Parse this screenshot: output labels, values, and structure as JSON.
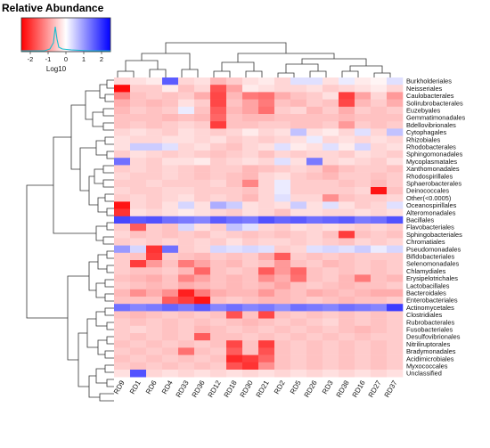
{
  "legend": {
    "title": "Relative Abundance",
    "xlabel": "Log10",
    "ticks": [
      "-2",
      "-1",
      "0",
      "1",
      "2"
    ],
    "colors": {
      "low": "#ff0000",
      "mid": "#ffffff",
      "high": "#0000ff",
      "density": "#17becf"
    }
  },
  "chart_data": {
    "type": "heatmap",
    "columns": [
      "RD9",
      "RD1",
      "RD6",
      "RD4",
      "RD33",
      "RD36",
      "RD12",
      "RD18",
      "RD30",
      "RD21",
      "RD2",
      "RD5",
      "RD26",
      "RD3",
      "RD38",
      "RD16",
      "RD27",
      "RD37"
    ],
    "rows": [
      "Burkholderiales",
      "Neisseriales",
      "Caulobacterales",
      "Solirubrobacterales",
      "Euzebyales",
      "Gemmatimonadales",
      "Bdellovibrionales",
      "Cytophagales",
      "Rhizobiales",
      "Rhodobacterales",
      "Sphingomonadales",
      "Mycoplasmatales",
      "Xanthomonadales",
      "Rhodospirillales",
      "Sphaerobacterales",
      "Deinococcales",
      "Other(<0.0005)",
      "Oceanospirillales",
      "Alteromonadales",
      "Bacillales",
      "Flavobacteriales",
      "Sphingobacteriales",
      "Chromatiales",
      "Pseudomonadales",
      "Bifidobacteriales",
      "Selenomonadales",
      "Chlamydiales",
      "Erysipelotrichales",
      "Lactobacillales",
      "Bacteroidales",
      "Enterobacteriales",
      "Actinomycetales",
      "Clostridiales",
      "Rubrobacterales",
      "Fusobacteriales",
      "Desulfovibrionales",
      "Nitriliruptorales",
      "Bradymonadales",
      "Acidimicrobiales",
      "Myxococcales",
      "Unclassified"
    ],
    "value_range": [
      -2.5,
      2.5
    ],
    "values": [
      [
        -0.4,
        -0.3,
        -0.2,
        1.6,
        -0.4,
        -0.3,
        -0.7,
        -0.5,
        -0.3,
        -0.2,
        -0.4,
        0.3,
        0.3,
        -0.3,
        0.2,
        -0.2,
        -0.1,
        0.3
      ],
      [
        -2.4,
        -0.5,
        -0.5,
        -0.2,
        -0.6,
        -0.4,
        -1.7,
        -0.9,
        -0.2,
        -0.3,
        -0.4,
        -0.4,
        -0.3,
        -0.5,
        -0.4,
        -0.3,
        -0.2,
        -0.4
      ],
      [
        -1.2,
        -0.6,
        -0.5,
        -0.6,
        -0.5,
        -0.8,
        -1.8,
        -0.7,
        -1.3,
        -1.4,
        -0.8,
        -0.6,
        -0.5,
        -0.3,
        -1.9,
        -0.9,
        -0.4,
        -1.0
      ],
      [
        -0.8,
        -0.6,
        -0.7,
        -0.6,
        -0.3,
        -0.5,
        -1.8,
        -0.6,
        -0.9,
        -1.3,
        -0.6,
        -0.7,
        -0.5,
        -0.6,
        -1.8,
        -0.7,
        -0.5,
        -0.8
      ],
      [
        -0.7,
        -0.5,
        -0.6,
        -0.5,
        0.2,
        -0.6,
        -1.6,
        -0.7,
        -0.9,
        -1.4,
        -0.5,
        -0.4,
        -0.7,
        -0.5,
        -0.8,
        -0.5,
        -0.6,
        -0.5
      ],
      [
        -0.6,
        -0.6,
        -0.6,
        -0.7,
        -0.6,
        -0.7,
        -1.5,
        -0.6,
        -0.7,
        -0.7,
        -0.6,
        -0.6,
        -0.6,
        -0.6,
        -0.7,
        -0.6,
        -0.6,
        -0.6
      ],
      [
        -0.6,
        -0.5,
        -0.6,
        -0.5,
        -0.4,
        -0.5,
        -1.9,
        -0.6,
        -0.6,
        -0.5,
        -0.5,
        -0.6,
        -0.6,
        -0.5,
        -1.0,
        -0.5,
        -0.6,
        -0.5
      ],
      [
        -0.4,
        -0.3,
        -0.4,
        -0.5,
        -0.3,
        -0.4,
        -0.5,
        -0.4,
        -0.2,
        -0.4,
        -0.3,
        0.6,
        -0.3,
        -0.2,
        -0.4,
        0.3,
        -0.4,
        0.6
      ],
      [
        -0.3,
        -0.4,
        -0.4,
        -0.3,
        -0.3,
        -0.4,
        -0.3,
        -0.5,
        -0.4,
        -0.5,
        -0.4,
        -0.3,
        0.2,
        -0.4,
        -0.3,
        -0.4,
        -0.3,
        -0.4
      ],
      [
        -0.3,
        0.5,
        0.5,
        0.3,
        -0.4,
        -0.3,
        -0.5,
        -0.6,
        -0.4,
        -0.3,
        0.3,
        -0.2,
        -0.3,
        0.3,
        -0.2,
        0.4,
        -0.4,
        -0.3
      ],
      [
        -0.5,
        -0.3,
        -0.4,
        -0.5,
        -0.4,
        -0.5,
        -0.6,
        -0.5,
        -0.4,
        -0.6,
        -0.4,
        -0.5,
        -0.4,
        -0.4,
        -0.5,
        -0.3,
        -0.4,
        -0.5
      ],
      [
        1.4,
        -0.4,
        -0.5,
        -0.3,
        -0.3,
        -0.2,
        -0.5,
        -0.4,
        -0.3,
        -0.4,
        0.3,
        -0.3,
        1.3,
        -0.4,
        -0.3,
        -0.4,
        -0.5,
        -0.3
      ],
      [
        -0.5,
        -0.4,
        -0.5,
        -0.4,
        -0.5,
        -0.6,
        -0.5,
        -0.5,
        -0.7,
        -0.6,
        -0.5,
        -0.4,
        -0.5,
        -0.8,
        -0.6,
        -0.5,
        -0.5,
        -0.6
      ],
      [
        -0.4,
        -0.5,
        -0.5,
        -0.4,
        -0.5,
        -0.6,
        -0.5,
        -0.6,
        -0.7,
        -0.4,
        -0.3,
        -0.5,
        -0.6,
        -0.7,
        -0.5,
        -0.5,
        -0.6,
        -0.5
      ],
      [
        -0.5,
        -0.5,
        -0.4,
        -0.5,
        -0.5,
        -0.5,
        -0.4,
        -0.6,
        -1.2,
        -0.4,
        0.2,
        -0.5,
        -0.5,
        -0.5,
        -0.6,
        -0.5,
        -0.7,
        -0.5
      ],
      [
        -0.4,
        -0.5,
        -0.5,
        -0.4,
        -0.4,
        -0.5,
        -0.5,
        -0.5,
        -0.6,
        -0.4,
        0.2,
        -0.5,
        -0.5,
        -0.5,
        -0.5,
        -0.4,
        -2.3,
        -0.6
      ],
      [
        -0.5,
        -0.4,
        -0.5,
        -0.4,
        -0.3,
        -0.5,
        -0.4,
        -0.5,
        -0.7,
        -0.4,
        0.3,
        -0.4,
        -0.4,
        -1.1,
        -0.6,
        -0.5,
        -0.5,
        -0.4
      ],
      [
        -2.3,
        -0.4,
        -0.5,
        -0.3,
        0.4,
        -0.3,
        0.8,
        0.5,
        -0.3,
        -0.4,
        -0.3,
        0.5,
        -0.3,
        0.3,
        -0.3,
        -0.5,
        -0.4,
        0.3
      ],
      [
        -2.0,
        -0.3,
        -0.4,
        -0.3,
        -0.2,
        -0.3,
        -0.4,
        -0.5,
        -0.3,
        -0.4,
        -0.6,
        -0.3,
        -0.3,
        -0.4,
        -0.4,
        -0.3,
        -0.4,
        -0.3
      ],
      [
        1.8,
        1.6,
        1.7,
        1.4,
        1.3,
        1.2,
        1.6,
        1.4,
        1.3,
        1.7,
        1.5,
        1.6,
        1.4,
        1.5,
        1.6,
        1.3,
        1.4,
        1.7
      ],
      [
        -0.5,
        -1.6,
        -0.5,
        -0.6,
        0.4,
        -0.3,
        -0.5,
        0.6,
        0.3,
        -0.4,
        -0.5,
        -0.3,
        -0.4,
        -0.3,
        -0.4,
        -0.5,
        -0.4,
        -0.5
      ],
      [
        -0.4,
        -0.6,
        -0.5,
        -0.6,
        -0.5,
        -0.6,
        -0.4,
        -0.5,
        -0.6,
        -0.5,
        -0.6,
        -0.5,
        -0.4,
        -0.6,
        -1.9,
        -0.6,
        -0.5,
        -0.6
      ],
      [
        -0.5,
        -0.4,
        -0.5,
        -0.4,
        -0.5,
        -0.4,
        -0.5,
        -0.3,
        -0.5,
        -0.4,
        -0.4,
        -0.5,
        -0.4,
        -0.5,
        -0.6,
        -0.4,
        -0.5,
        -0.4
      ],
      [
        1.0,
        0.4,
        -2.0,
        1.4,
        -0.5,
        -0.4,
        0.4,
        0.3,
        0.4,
        0.3,
        -0.5,
        -0.4,
        0.3,
        0.4,
        0.3,
        0.5,
        0.2,
        0.4
      ],
      [
        -0.5,
        -0.6,
        -1.9,
        -0.5,
        -0.6,
        -0.7,
        -0.5,
        -0.6,
        -0.5,
        -0.8,
        -1.6,
        -0.5,
        -0.6,
        -0.5,
        -0.6,
        -0.5,
        -0.5,
        -0.5
      ],
      [
        -0.5,
        -1.9,
        -1.0,
        -0.6,
        -1.3,
        -0.9,
        -0.6,
        -0.7,
        -0.5,
        -0.6,
        -1.0,
        -0.6,
        -0.5,
        -0.7,
        -0.6,
        -0.5,
        -0.6,
        -0.5
      ],
      [
        -0.5,
        -0.6,
        -0.6,
        -0.5,
        -0.7,
        -1.5,
        -0.6,
        -0.5,
        -0.6,
        -1.6,
        -1.0,
        -1.5,
        -0.6,
        -0.5,
        -0.6,
        -0.5,
        -0.6,
        -0.5
      ],
      [
        -0.6,
        -0.7,
        -0.8,
        -0.6,
        -1.2,
        -0.9,
        -0.6,
        -0.7,
        -0.6,
        -1.1,
        -0.8,
        -1.4,
        -0.6,
        -0.5,
        -0.7,
        -1.3,
        -0.6,
        -0.7
      ],
      [
        -0.5,
        -0.6,
        -0.7,
        -0.6,
        -0.8,
        -0.7,
        -0.6,
        -0.7,
        -0.6,
        -0.7,
        -0.9,
        -0.6,
        -0.5,
        -0.6,
        -0.7,
        -0.6,
        -0.6,
        -0.5
      ],
      [
        -0.7,
        -1.1,
        -0.8,
        -1.1,
        -2.2,
        -1.3,
        -0.8,
        -0.7,
        -0.7,
        -1.0,
        -0.7,
        -0.6,
        -0.8,
        -0.7,
        -0.6,
        -0.7,
        -0.8,
        -0.8
      ],
      [
        -0.6,
        -0.6,
        -0.6,
        -1.6,
        -1.9,
        -2.3,
        -0.6,
        -0.5,
        -0.6,
        -0.7,
        -0.7,
        -0.6,
        -0.5,
        -0.6,
        -0.7,
        -0.6,
        -0.6,
        -0.5
      ],
      [
        1.4,
        1.2,
        1.3,
        1.5,
        1.3,
        1.6,
        1.2,
        1.4,
        1.2,
        1.3,
        1.1,
        1.4,
        1.3,
        1.2,
        1.4,
        1.3,
        1.2,
        1.9
      ],
      [
        -0.6,
        -0.7,
        -0.6,
        -0.5,
        -0.6,
        -0.5,
        -0.6,
        -1.7,
        -0.6,
        -1.8,
        -0.6,
        -0.5,
        -0.6,
        -0.5,
        -0.6,
        -0.5,
        -0.6,
        -0.5
      ],
      [
        -0.5,
        -0.6,
        -0.5,
        -0.6,
        -0.5,
        -0.6,
        -0.5,
        -0.6,
        -0.7,
        -0.6,
        -0.5,
        -0.6,
        -0.5,
        -0.4,
        -0.6,
        -0.5,
        -0.6,
        -0.5
      ],
      [
        -0.5,
        -0.4,
        -0.5,
        -0.6,
        -0.5,
        -0.7,
        -0.6,
        -0.5,
        -0.6,
        -0.5,
        -0.6,
        -0.5,
        -0.6,
        -0.5,
        -0.6,
        -0.7,
        -0.6,
        -0.5
      ],
      [
        -0.5,
        -0.6,
        -0.5,
        -0.6,
        -0.5,
        -1.6,
        -0.6,
        -0.6,
        -0.5,
        -0.6,
        -0.5,
        -0.6,
        -0.5,
        -0.6,
        -0.5,
        -0.6,
        -0.5,
        -0.5
      ],
      [
        -0.6,
        -0.5,
        -0.6,
        -0.5,
        -0.6,
        -0.5,
        -0.6,
        -1.8,
        -0.6,
        -1.9,
        -0.6,
        -0.5,
        -0.6,
        -0.5,
        -0.6,
        -0.5,
        -0.6,
        -0.5
      ],
      [
        -0.5,
        -0.6,
        -0.5,
        -0.6,
        -1.4,
        -0.6,
        -0.5,
        -1.6,
        -0.6,
        -1.7,
        -0.6,
        -0.5,
        -0.6,
        -0.5,
        -0.6,
        -0.5,
        -0.6,
        -0.5
      ],
      [
        -0.6,
        -0.5,
        -0.6,
        -0.5,
        -0.6,
        -0.5,
        -0.6,
        -2.1,
        -1.9,
        -1.5,
        -0.6,
        -0.5,
        -0.6,
        -0.5,
        -0.6,
        -0.5,
        -0.6,
        -0.5
      ],
      [
        -0.5,
        -0.6,
        -0.5,
        -0.6,
        -0.5,
        -0.6,
        -0.5,
        -1.7,
        -2.0,
        -1.1,
        -0.6,
        -0.5,
        -0.6,
        -0.5,
        -0.6,
        -0.5,
        -0.6,
        -0.5
      ],
      [
        -0.3,
        1.7,
        -0.4,
        -0.3,
        -0.4,
        -0.3,
        -0.4,
        -0.3,
        -0.4,
        -0.3,
        -0.4,
        -0.3,
        -0.4,
        -0.3,
        -0.4,
        -0.3,
        -0.4,
        -0.3
      ]
    ]
  }
}
